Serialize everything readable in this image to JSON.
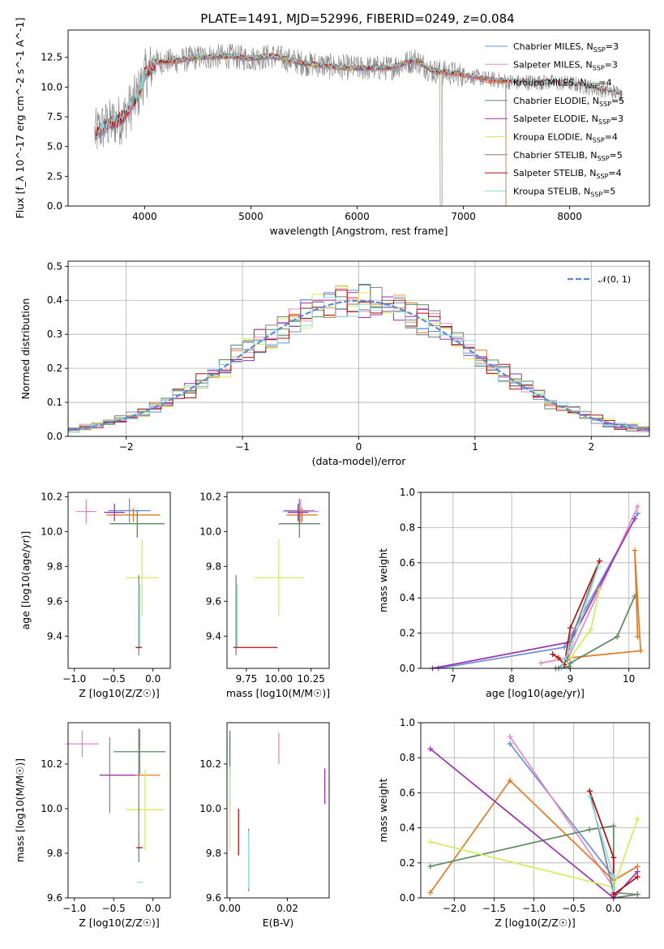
{
  "figure_title": "PLATE=1491, MJD=52996, FIBERID=0249, z=0.084",
  "colors": {
    "Chabrier MILES": "#6a8fd8",
    "Salpeter MILES": "#e78ac3",
    "Kroupa MILES": "#e07b26",
    "Chabrier ELODIE": "#5b8a60",
    "Salpeter ELODIE": "#9b30b0",
    "Kroupa ELODIE": "#d4ec5a",
    "Chabrier STELIB": "#808080",
    "Salpeter STELIB": "#b01010",
    "Kroupa STELIB": "#8fdce0"
  },
  "chart_data": [
    {
      "id": "spectrum",
      "type": "line",
      "xlabel": "wavelength [Angstrom, rest frame]",
      "ylabel": "Flux [f_λ 10^-17 erg cm^-2 s^-1 A^-1]",
      "xlim": [
        3280,
        8750
      ],
      "ylim": [
        0,
        14.8
      ],
      "xticks": [
        4000,
        5000,
        6000,
        7000,
        8000
      ],
      "yticks": [
        0.0,
        2.5,
        5.0,
        7.5,
        10.0,
        12.5
      ],
      "grid": false,
      "legend_position": "right",
      "legend": [
        {
          "label": "Chabrier MILES, N_SSP=3",
          "main": "Chabrier MILES, N",
          "sub": "SSP",
          "tail": "=3",
          "model": "Chabrier MILES"
        },
        {
          "label": "Salpeter MILES, N_SSP=3",
          "main": "Salpeter MILES, N",
          "sub": "SSP",
          "tail": "=3",
          "model": "Salpeter MILES"
        },
        {
          "label": "Kroupa MILES, N_SSP=4",
          "main": "Kroupa MILES, N",
          "sub": "SSP",
          "tail": "=4",
          "model": "Kroupa MILES"
        },
        {
          "label": "Chabrier ELODIE, N_SSP=5",
          "main": "Chabrier ELODIE, N",
          "sub": "SSP",
          "tail": "=5",
          "model": "Chabrier ELODIE"
        },
        {
          "label": "Salpeter ELODIE, N_SSP=3",
          "main": "Salpeter ELODIE, N",
          "sub": "SSP",
          "tail": "=3",
          "model": "Salpeter ELODIE"
        },
        {
          "label": "Kroupa ELODIE, N_SSP=4",
          "main": "Kroupa ELODIE, N",
          "sub": "SSP",
          "tail": "=4",
          "model": "Kroupa ELODIE"
        },
        {
          "label": "Chabrier STELIB, N_SSP=5",
          "main": "Chabrier STELIB, N",
          "sub": "SSP",
          "tail": "=5",
          "model": "Chabrier STELIB"
        },
        {
          "label": "Salpeter STELIB, N_SSP=4",
          "main": "Salpeter STELIB, N",
          "sub": "SSP",
          "tail": "=4",
          "model": "Salpeter STELIB"
        },
        {
          "label": "Kroupa STELIB, N_SSP=5",
          "main": "Kroupa STELIB, N",
          "sub": "SSP",
          "tail": "=5",
          "model": "Kroupa STELIB"
        }
      ],
      "continuum": [
        [
          3530,
          6.0
        ],
        [
          3600,
          6.6
        ],
        [
          3700,
          7.0
        ],
        [
          3800,
          7.4
        ],
        [
          3900,
          8.8
        ],
        [
          3950,
          9.6
        ],
        [
          4000,
          11.0
        ],
        [
          4100,
          12.1
        ],
        [
          4300,
          12.2
        ],
        [
          4500,
          12.5
        ],
        [
          4800,
          12.6
        ],
        [
          5000,
          12.4
        ],
        [
          5200,
          12.6
        ],
        [
          5500,
          12.0
        ],
        [
          5800,
          11.7
        ],
        [
          6000,
          11.6
        ],
        [
          6300,
          11.6
        ],
        [
          6550,
          12.3
        ],
        [
          6700,
          11.4
        ],
        [
          7000,
          11.0
        ],
        [
          7200,
          10.7
        ],
        [
          7500,
          10.4
        ],
        [
          7800,
          10.4
        ],
        [
          8000,
          10.3
        ],
        [
          8300,
          9.8
        ],
        [
          8500,
          9.4
        ]
      ]
    },
    {
      "id": "residuals",
      "type": "step",
      "xlabel": "(data-model)/error",
      "ylabel": "Normed distribution",
      "xlim": [
        -2.5,
        2.5
      ],
      "ylim": [
        0,
        0.515
      ],
      "xticks": [
        -2,
        -1,
        0,
        1,
        2
      ],
      "yticks": [
        0.0,
        0.1,
        0.2,
        0.3,
        0.4,
        0.5
      ],
      "grid": true,
      "legend_position": "upper right",
      "gaussian_label": "𝒩(0, 1)",
      "gaussian_color": "#5b8ad6"
    },
    {
      "id": "age-vs-Z",
      "type": "errorbar",
      "xlabel": "Z [log10(Z/Z☉)]",
      "ylabel": "age [log10(age/yr)]",
      "xlim": [
        -1.08,
        0.22
      ],
      "ylim": [
        9.215,
        10.225
      ],
      "xticks": [
        -1.0,
        -0.5,
        0.0
      ],
      "yticks": [
        9.4,
        9.6,
        9.8,
        10.0,
        10.2
      ],
      "points": [
        {
          "model": "Chabrier MILES",
          "x": -0.3,
          "xerr": 0.27,
          "y": 10.12,
          "yerr": 0.07
        },
        {
          "model": "Salpeter MILES",
          "x": -0.85,
          "xerr": 0.13,
          "y": 10.115,
          "yerr": 0.07
        },
        {
          "model": "Kroupa MILES",
          "x": -0.25,
          "xerr": 0.34,
          "y": 10.095,
          "yerr": 0.04
        },
        {
          "model": "Chabrier ELODIE",
          "x": -0.2,
          "xerr": 0.35,
          "y": 10.045,
          "yerr": 0.08
        },
        {
          "model": "Salpeter ELODIE",
          "x": -0.49,
          "xerr": 0.13,
          "y": 10.11,
          "yerr": 0.05
        },
        {
          "model": "Kroupa ELODIE",
          "x": -0.14,
          "xerr": 0.21,
          "y": 9.735,
          "yerr": 0.22
        },
        {
          "model": "Chabrier STELIB",
          "x": -0.18,
          "xerr": 0.0,
          "y": 9.52,
          "yerr": 0.23
        },
        {
          "model": "Salpeter STELIB",
          "x": -0.18,
          "xerr": 0.04,
          "y": 9.335,
          "yerr": 0.0
        },
        {
          "model": "Kroupa STELIB",
          "x": -0.17,
          "xerr": 0.0,
          "y": 9.52,
          "yerr": 0.18
        }
      ]
    },
    {
      "id": "age-vs-mass",
      "type": "errorbar",
      "xlabel": "mass [log10(M/M☉)]",
      "ylabel": "",
      "xlim": [
        9.6,
        10.39
      ],
      "ylim": [
        9.215,
        10.225
      ],
      "xticks": [
        9.75,
        10.0,
        10.25
      ],
      "yticks": [
        9.4,
        9.6,
        9.8,
        10.0,
        10.2
      ],
      "points": [
        {
          "model": "Chabrier MILES",
          "x": 10.16,
          "xerr": 0.12,
          "y": 10.12,
          "yerr": 0.07
        },
        {
          "model": "Salpeter MILES",
          "x": 10.17,
          "xerr": 0.14,
          "y": 10.115,
          "yerr": 0.07
        },
        {
          "model": "Kroupa MILES",
          "x": 10.18,
          "xerr": 0.12,
          "y": 10.095,
          "yerr": 0.04
        },
        {
          "model": "Chabrier ELODIE",
          "x": 10.16,
          "xerr": 0.16,
          "y": 10.045,
          "yerr": 0.08
        },
        {
          "model": "Salpeter ELODIE",
          "x": 10.15,
          "xerr": 0.08,
          "y": 10.11,
          "yerr": 0.05
        },
        {
          "model": "Kroupa ELODIE",
          "x": 10.0,
          "xerr": 0.19,
          "y": 9.735,
          "yerr": 0.22
        },
        {
          "model": "Chabrier STELIB",
          "x": 9.67,
          "xerr": 0.0,
          "y": 9.52,
          "yerr": 0.23
        },
        {
          "model": "Salpeter STELIB",
          "x": 9.82,
          "xerr": 0.17,
          "y": 9.335,
          "yerr": 0.0
        },
        {
          "model": "Kroupa STELIB",
          "x": 9.68,
          "xerr": 0.0,
          "y": 9.52,
          "yerr": 0.18
        }
      ]
    },
    {
      "id": "weight-vs-age",
      "type": "line",
      "xlabel": "age [log10(age/yr)]",
      "ylabel": "mass weight",
      "xlim": [
        6.45,
        10.35
      ],
      "ylim": [
        0,
        1.0
      ],
      "xticks": [
        7,
        8,
        9,
        10
      ],
      "yticks": [
        0.0,
        0.2,
        0.4,
        0.6,
        0.8,
        1.0
      ],
      "grid": true,
      "series": [
        {
          "model": "Chabrier MILES",
          "x": [
            10.15,
            8.9,
            6.75
          ],
          "y": [
            0.88,
            0.12,
            0.0
          ]
        },
        {
          "model": "Salpeter MILES",
          "x": [
            10.15,
            8.97,
            8.5
          ],
          "y": [
            0.92,
            0.06,
            0.03
          ]
        },
        {
          "model": "Kroupa MILES",
          "x": [
            10.15,
            10.1,
            10.2,
            9.0
          ],
          "y": [
            0.18,
            0.67,
            0.1,
            0.06
          ]
        },
        {
          "model": "Chabrier ELODIE",
          "x": [
            10.1,
            9.8,
            9.0,
            8.98,
            8.75
          ],
          "y": [
            0.41,
            0.18,
            0.03,
            0.01,
            0.0
          ]
        },
        {
          "model": "Salpeter ELODIE",
          "x": [
            10.1,
            9.0,
            6.65
          ],
          "y": [
            0.85,
            0.15,
            0.0
          ]
        },
        {
          "model": "Kroupa ELODIE",
          "x": [
            9.5,
            9.35,
            9.0,
            8.9
          ],
          "y": [
            0.45,
            0.22,
            0.06,
            0.03
          ]
        },
        {
          "model": "Chabrier STELIB",
          "x": [
            9.5,
            9.0,
            8.95,
            8.8
          ],
          "y": [
            0.61,
            0.15,
            0.05,
            0.0
          ]
        },
        {
          "model": "Salpeter STELIB",
          "x": [
            9.5,
            9.0,
            8.9,
            8.8,
            8.7
          ],
          "y": [
            0.61,
            0.23,
            0.02,
            0.06,
            0.08
          ]
        },
        {
          "model": "Kroupa STELIB",
          "x": [
            9.48,
            9.02,
            8.9,
            8.85
          ],
          "y": [
            0.58,
            0.12,
            0.05,
            0.0
          ]
        }
      ]
    },
    {
      "id": "mass-vs-Z",
      "type": "errorbar",
      "xlabel": "Z [log10(Z/Z☉)]",
      "ylabel": "mass [log10(M/M☉)]",
      "xlim": [
        -1.08,
        0.22
      ],
      "ylim": [
        9.6,
        10.385
      ],
      "xticks": [
        -1.0,
        -0.5,
        0.0
      ],
      "yticks": [
        9.6,
        9.8,
        10.0,
        10.2
      ],
      "points": [
        {
          "model": "Chabrier MILES",
          "x": -0.55,
          "xerr": 0.0,
          "y": 10.15,
          "yerr": 0.17
        },
        {
          "model": "Salpeter MILES",
          "x": -0.9,
          "xerr": 0.21,
          "y": 10.29,
          "yerr": 0.06
        },
        {
          "model": "Kroupa MILES",
          "x": -0.25,
          "xerr": 0.34,
          "y": 10.15,
          "yerr": 0.0
        },
        {
          "model": "Chabrier ELODIE",
          "x": -0.17,
          "xerr": 0.33,
          "y": 10.255,
          "yerr": 0.1
        },
        {
          "model": "Salpeter ELODIE",
          "x": -0.45,
          "xerr": 0.23,
          "y": 10.15,
          "yerr": 0.0
        },
        {
          "model": "Kroupa ELODIE",
          "x": -0.1,
          "xerr": 0.24,
          "y": 9.995,
          "yerr": 0.18
        },
        {
          "model": "Chabrier STELIB",
          "x": -0.18,
          "xerr": 0.0,
          "y": 10.06,
          "yerr": 0.3
        },
        {
          "model": "Salpeter STELIB",
          "x": -0.17,
          "xerr": 0.04,
          "y": 9.825,
          "yerr": 0.0
        },
        {
          "model": "Kroupa STELIB",
          "x": -0.17,
          "xerr": 0.04,
          "y": 9.67,
          "yerr": 0.0
        }
      ]
    },
    {
      "id": "mass-vs-EBV",
      "type": "errorbar",
      "xlabel": "E(B-V)",
      "ylabel": "",
      "xlim": [
        -0.001,
        0.0345
      ],
      "ylim": [
        9.6,
        10.385
      ],
      "xticks": [
        0.0,
        0.02
      ],
      "yticks": [
        9.6,
        9.8,
        10.0,
        10.2
      ],
      "points": [
        {
          "model": "Chabrier MILES",
          "x": 0.0,
          "xerr": 0.0,
          "y": 10.15,
          "yerr": 0.17
        },
        {
          "model": "Salpeter MILES",
          "x": 0.017,
          "xerr": 0.0,
          "y": 10.27,
          "yerr": 0.07
        },
        {
          "model": "Kroupa MILES",
          "x": 0.0,
          "xerr": 0.0,
          "y": 10.15,
          "yerr": 0.0
        },
        {
          "model": "Chabrier ELODIE",
          "x": 0.0,
          "xerr": 0.0,
          "y": 10.25,
          "yerr": 0.1
        },
        {
          "model": "Salpeter ELODIE",
          "x": 0.033,
          "xerr": 0.0,
          "y": 10.1,
          "yerr": 0.08
        },
        {
          "model": "Kroupa ELODIE",
          "x": 0.0,
          "xerr": 0.0,
          "y": 10.0,
          "yerr": 0.19
        },
        {
          "model": "Chabrier STELIB",
          "x": 0.0065,
          "xerr": 0.0,
          "y": 9.77,
          "yerr": 0.14
        },
        {
          "model": "Salpeter STELIB",
          "x": 0.003,
          "xerr": 0.0,
          "y": 9.895,
          "yerr": 0.105
        },
        {
          "model": "Kroupa STELIB",
          "x": 0.0065,
          "xerr": 0.0,
          "y": 9.77,
          "yerr": 0.13
        }
      ]
    },
    {
      "id": "weight-vs-Z",
      "type": "line",
      "xlabel": "Z [log10(Z/Z☉)]",
      "ylabel": "mass weight",
      "xlim": [
        -2.42,
        0.45
      ],
      "ylim": [
        0,
        1.0
      ],
      "xticks": [
        -2.0,
        -1.5,
        -1.0,
        -0.5,
        0.0
      ],
      "yticks": [
        0.0,
        0.2,
        0.4,
        0.6,
        0.8,
        1.0
      ],
      "grid": true,
      "series": [
        {
          "model": "Chabrier MILES",
          "x": [
            -1.3,
            0.0
          ],
          "y": [
            0.88,
            0.12
          ]
        },
        {
          "model": "Salpeter MILES",
          "x": [
            -1.3,
            0.0,
            0.0
          ],
          "y": [
            0.92,
            0.06,
            0.03
          ]
        },
        {
          "model": "Kroupa MILES",
          "x": [
            -2.3,
            -1.3,
            0.0,
            0.3
          ],
          "y": [
            0.03,
            0.67,
            0.1,
            0.18
          ]
        },
        {
          "model": "Chabrier ELODIE",
          "x": [
            -2.3,
            -0.3,
            0.0,
            0.0,
            0.3
          ],
          "y": [
            0.18,
            0.39,
            0.41,
            0.0,
            0.02
          ]
        },
        {
          "model": "Salpeter ELODIE",
          "x": [
            -2.3,
            0.0,
            0.3
          ],
          "y": [
            0.85,
            0.0,
            0.15
          ]
        },
        {
          "model": "Kroupa ELODIE",
          "x": [
            -2.3,
            0.0,
            0.3
          ],
          "y": [
            0.32,
            0.06,
            0.45
          ]
        },
        {
          "model": "Chabrier STELIB",
          "x": [
            -0.3,
            0.0,
            0.3
          ],
          "y": [
            0.61,
            0.03,
            0.02
          ]
        },
        {
          "model": "Salpeter STELIB",
          "x": [
            -0.3,
            0.0,
            0.0,
            0.3
          ],
          "y": [
            0.61,
            0.23,
            0.02,
            0.12
          ]
        },
        {
          "model": "Kroupa STELIB",
          "x": [
            -0.3,
            0.0,
            0.0
          ],
          "y": [
            0.58,
            0.12,
            0.05
          ]
        }
      ]
    }
  ]
}
